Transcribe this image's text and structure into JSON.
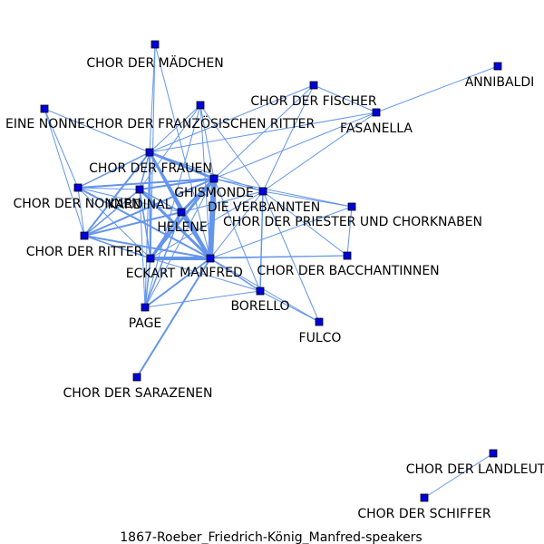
{
  "caption": "1867-Roeber_Friedrich-König_Manfred-speakers",
  "colors": {
    "edge": "#6495ED",
    "node": "#0000DD",
    "node_border": "#000000",
    "label": "#000000"
  },
  "nodes": [
    {
      "id": "chor-der-maedchen",
      "label": "CHOR DER MÄDCHEN"
    },
    {
      "id": "annibaldi",
      "label": "ANNIBALDI"
    },
    {
      "id": "chor-der-fischer",
      "label": "CHOR DER FISCHER"
    },
    {
      "id": "eine-nonne",
      "label": "EINE NONNE"
    },
    {
      "id": "chor-der-franzoesischen-ritter",
      "label": "CHOR DER FRANZÖSISCHEN RITTER"
    },
    {
      "id": "fasanella",
      "label": "FASANELLA"
    },
    {
      "id": "chor-der-frauen",
      "label": "CHOR DER FRAUEN"
    },
    {
      "id": "ghismonde",
      "label": "GHISMONDE"
    },
    {
      "id": "chor-der-nonnen",
      "label": "CHOR DER NONNEN"
    },
    {
      "id": "kardinal",
      "label": "KARDINAL"
    },
    {
      "id": "die-verbannten",
      "label": "DIE VERBANNTEN"
    },
    {
      "id": "chor-der-priester",
      "label": "CHOR DER PRIESTER UND CHORKNABEN"
    },
    {
      "id": "helene",
      "label": "HELENE"
    },
    {
      "id": "chor-der-ritter",
      "label": "CHOR DER RITTER"
    },
    {
      "id": "eckart",
      "label": "ECKART"
    },
    {
      "id": "manfred",
      "label": "MANFRED"
    },
    {
      "id": "chor-der-bacchantinnen",
      "label": "CHOR DER BACCHANTINNEN"
    },
    {
      "id": "borello",
      "label": "BORELLO"
    },
    {
      "id": "page",
      "label": "PAGE"
    },
    {
      "id": "fulco",
      "label": "FULCO"
    },
    {
      "id": "chor-der-sarazenen",
      "label": "CHOR DER SARAZENEN"
    },
    {
      "id": "chor-der-landleute",
      "label": "CHOR DER LANDLEUTE"
    },
    {
      "id": "chor-der-schiffer",
      "label": "CHOR DER SCHIFFER"
    }
  ],
  "edges": [
    {
      "source": "manfred",
      "target": "ghismonde",
      "weight": 6
    },
    {
      "source": "manfred",
      "target": "helene",
      "weight": 4
    },
    {
      "source": "manfred",
      "target": "eckart",
      "weight": 4
    },
    {
      "source": "manfred",
      "target": "chor-der-frauen",
      "weight": 3
    },
    {
      "source": "manfred",
      "target": "kardinal",
      "weight": 3
    },
    {
      "source": "manfred",
      "target": "chor-der-nonnen",
      "weight": 2
    },
    {
      "source": "manfred",
      "target": "chor-der-ritter",
      "weight": 2
    },
    {
      "source": "manfred",
      "target": "page",
      "weight": 2
    },
    {
      "source": "manfred",
      "target": "chor-der-sarazenen",
      "weight": 2
    },
    {
      "source": "manfred",
      "target": "die-verbannten",
      "weight": 1
    },
    {
      "source": "manfred",
      "target": "chor-der-bacchantinnen",
      "weight": 1
    },
    {
      "source": "manfred",
      "target": "borello",
      "weight": 1.5
    },
    {
      "source": "manfred",
      "target": "fulco",
      "weight": 1
    },
    {
      "source": "manfred",
      "target": "chor-der-maedchen",
      "weight": 1
    },
    {
      "source": "manfred",
      "target": "chor-der-franzoesischen-ritter",
      "weight": 1
    },
    {
      "source": "manfred",
      "target": "chor-der-priester",
      "weight": 1
    },
    {
      "source": "ghismonde",
      "target": "chor-der-frauen",
      "weight": 3
    },
    {
      "source": "ghismonde",
      "target": "helene",
      "weight": 3
    },
    {
      "source": "ghismonde",
      "target": "eckart",
      "weight": 3
    },
    {
      "source": "ghismonde",
      "target": "chor-der-ritter",
      "weight": 2
    },
    {
      "source": "ghismonde",
      "target": "kardinal",
      "weight": 2
    },
    {
      "source": "ghismonde",
      "target": "chor-der-nonnen",
      "weight": 2
    },
    {
      "source": "ghismonde",
      "target": "die-verbannten",
      "weight": 1
    },
    {
      "source": "ghismonde",
      "target": "chor-der-fischer",
      "weight": 1
    },
    {
      "source": "ghismonde",
      "target": "fasanella",
      "weight": 1
    },
    {
      "source": "ghismonde",
      "target": "chor-der-franzoesischen-ritter",
      "weight": 1
    },
    {
      "source": "ghismonde",
      "target": "page",
      "weight": 1
    },
    {
      "source": "ghismonde",
      "target": "borello",
      "weight": 1
    },
    {
      "source": "helene",
      "target": "eckart",
      "weight": 2.5
    },
    {
      "source": "helene",
      "target": "chor-der-ritter",
      "weight": 2
    },
    {
      "source": "helene",
      "target": "chor-der-frauen",
      "weight": 2
    },
    {
      "source": "helene",
      "target": "kardinal",
      "weight": 1.5
    },
    {
      "source": "helene",
      "target": "page",
      "weight": 1.5
    },
    {
      "source": "helene",
      "target": "die-verbannten",
      "weight": 1
    },
    {
      "source": "eckart",
      "target": "chor-der-frauen",
      "weight": 2
    },
    {
      "source": "eckart",
      "target": "chor-der-ritter",
      "weight": 1.5
    },
    {
      "source": "eckart",
      "target": "kardinal",
      "weight": 1.5
    },
    {
      "source": "eckart",
      "target": "page",
      "weight": 1.5
    },
    {
      "source": "eckart",
      "target": "borello",
      "weight": 1
    },
    {
      "source": "eckart",
      "target": "die-verbannten",
      "weight": 1
    },
    {
      "source": "chor-der-frauen",
      "target": "chor-der-ritter",
      "weight": 2
    },
    {
      "source": "chor-der-frauen",
      "target": "chor-der-nonnen",
      "weight": 1.5
    },
    {
      "source": "chor-der-frauen",
      "target": "kardinal",
      "weight": 1.5
    },
    {
      "source": "chor-der-frauen",
      "target": "chor-der-maedchen",
      "weight": 1
    },
    {
      "source": "chor-der-frauen",
      "target": "chor-der-franzoesischen-ritter",
      "weight": 1
    },
    {
      "source": "chor-der-frauen",
      "target": "die-verbannten",
      "weight": 1
    },
    {
      "source": "chor-der-nonnen",
      "target": "eine-nonne",
      "weight": 1
    },
    {
      "source": "chor-der-nonnen",
      "target": "chor-der-ritter",
      "weight": 1
    },
    {
      "source": "chor-der-nonnen",
      "target": "kardinal",
      "weight": 1
    },
    {
      "source": "chor-der-nonnen",
      "target": "eckart",
      "weight": 1
    },
    {
      "source": "chor-der-nonnen",
      "target": "helene",
      "weight": 1
    },
    {
      "source": "eine-nonne",
      "target": "chor-der-frauen",
      "weight": 1
    },
    {
      "source": "eine-nonne",
      "target": "chor-der-ritter",
      "weight": 1
    },
    {
      "source": "kardinal",
      "target": "chor-der-ritter",
      "weight": 1.5
    },
    {
      "source": "kardinal",
      "target": "page",
      "weight": 1
    },
    {
      "source": "die-verbannten",
      "target": "chor-der-fischer",
      "weight": 1
    },
    {
      "source": "die-verbannten",
      "target": "fasanella",
      "weight": 1
    },
    {
      "source": "die-verbannten",
      "target": "borello",
      "weight": 1.5
    },
    {
      "source": "die-verbannten",
      "target": "fulco",
      "weight": 1
    },
    {
      "source": "die-verbannten",
      "target": "chor-der-priester",
      "weight": 1
    },
    {
      "source": "die-verbannten",
      "target": "chor-der-bacchantinnen",
      "weight": 1
    },
    {
      "source": "die-verbannten",
      "target": "chor-der-franzoesischen-ritter",
      "weight": 1
    },
    {
      "source": "fasanella",
      "target": "annibaldi",
      "weight": 1
    },
    {
      "source": "fasanella",
      "target": "chor-der-fischer",
      "weight": 1
    },
    {
      "source": "fasanella",
      "target": "chor-der-frauen",
      "weight": 1
    },
    {
      "source": "chor-der-fischer",
      "target": "chor-der-frauen",
      "weight": 1
    },
    {
      "source": "chor-der-priester",
      "target": "ghismonde",
      "weight": 1
    },
    {
      "source": "chor-der-priester",
      "target": "chor-der-bacchantinnen",
      "weight": 1
    },
    {
      "source": "chor-der-bacchantinnen",
      "target": "eckart",
      "weight": 1
    },
    {
      "source": "borello",
      "target": "fulco",
      "weight": 1
    },
    {
      "source": "borello",
      "target": "page",
      "weight": 1
    },
    {
      "source": "chor-der-franzoesischen-ritter",
      "target": "kardinal",
      "weight": 1
    },
    {
      "source": "chor-der-franzoesischen-ritter",
      "target": "page",
      "weight": 1
    },
    {
      "source": "chor-der-maedchen",
      "target": "eckart",
      "weight": 1
    },
    {
      "source": "page",
      "target": "chor-der-frauen",
      "weight": 1
    },
    {
      "source": "chor-der-landleute",
      "target": "chor-der-schiffer",
      "weight": 1
    }
  ]
}
